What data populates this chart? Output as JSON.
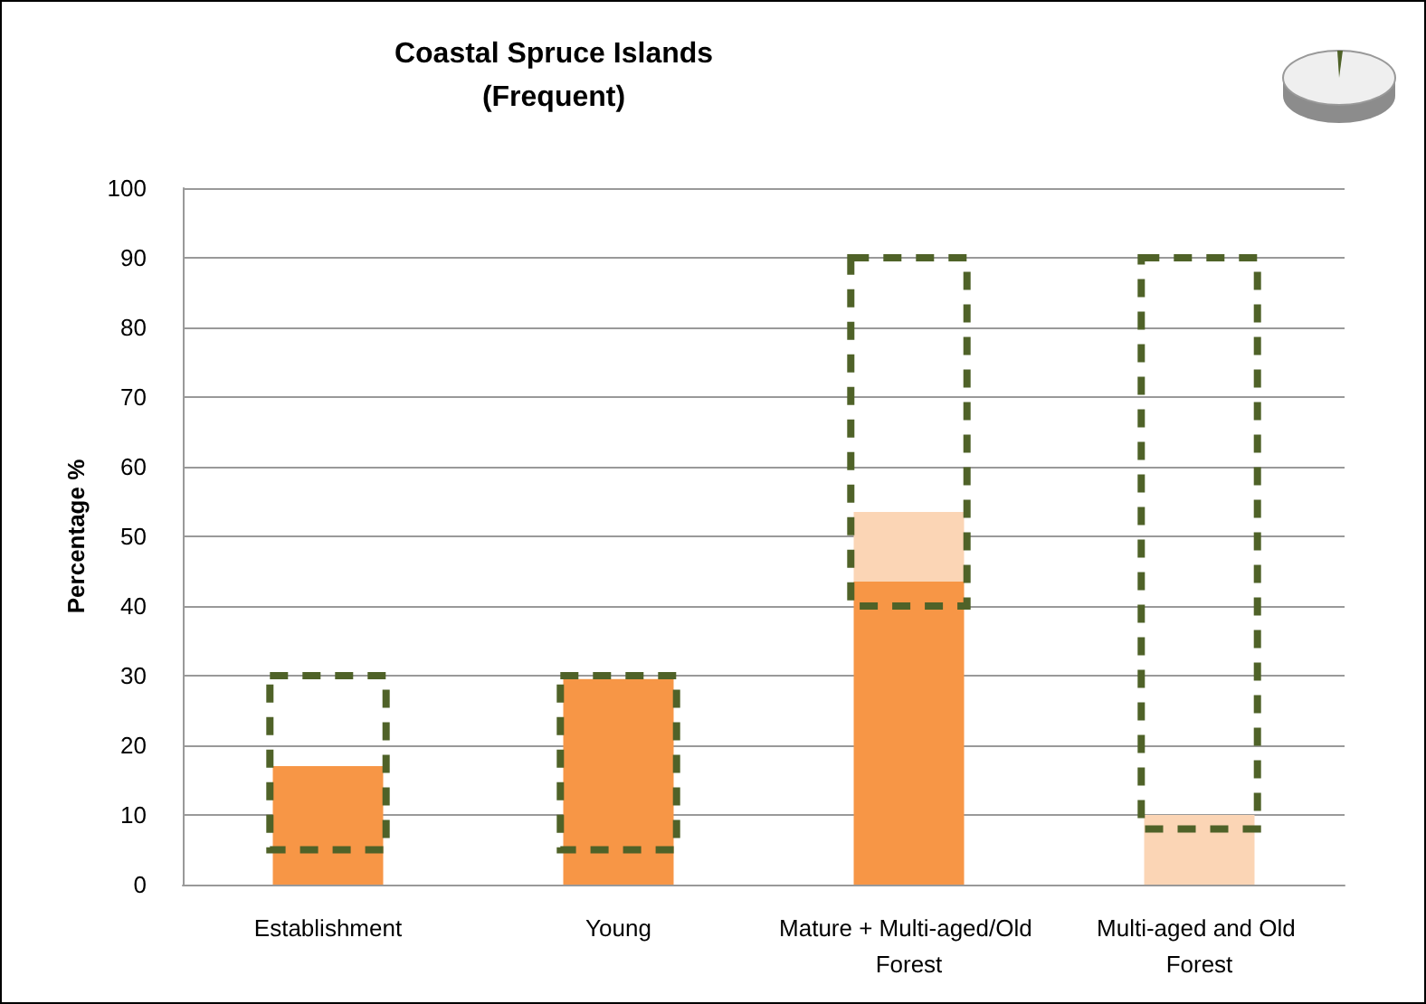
{
  "chart_data": {
    "type": "bar",
    "title": "Coastal Spruce Islands\n(Frequent)",
    "ylabel": "Percentage %",
    "categories": [
      "Establishment",
      "Young",
      "Mature + Multi-aged/Old Forest",
      "Multi-aged and Old Forest"
    ],
    "series": [
      {
        "color": "#f79646",
        "values": [
          17,
          29.5,
          43.5,
          0
        ]
      },
      {
        "color": "#fbd5b5",
        "base": [
          null,
          null,
          43.5,
          0
        ],
        "values": [
          null,
          null,
          10,
          10
        ]
      },
      {
        "type": "bar",
        "color": "#4f6228",
        "base": [
          5,
          5,
          40,
          8
        ],
        "values": [
          25,
          25,
          50,
          82
        ],
        "line_style": "dashed"
      }
    ],
    "ylim": [
      0,
      100
    ],
    "yticks": [
      0,
      10,
      20,
      30,
      40,
      50,
      60,
      70,
      80,
      90,
      100
    ],
    "grid": "y"
  }
}
